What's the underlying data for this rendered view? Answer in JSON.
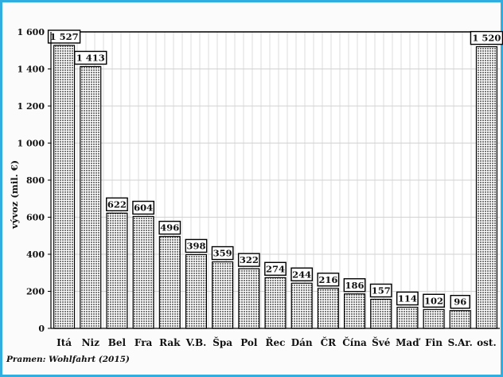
{
  "chart_data": {
    "type": "bar",
    "title": "",
    "xlabel": "",
    "ylabel": "vývoz (mil. €)",
    "ylim": [
      0,
      1600
    ],
    "yticks": [
      0,
      200,
      400,
      600,
      800,
      1000,
      1200,
      1400,
      1600
    ],
    "ytick_labels": [
      "0",
      "200",
      "400",
      "600",
      "800",
      "1 000",
      "1 200",
      "1 400",
      "1 600"
    ],
    "categories": [
      "Itá",
      "Niz",
      "Bel",
      "Fra",
      "Rak",
      "V.B.",
      "Špa",
      "Pol",
      "Řec",
      "Dán",
      "ČR",
      "Čína",
      "Švé",
      "Maď",
      "Fin",
      "S.Ar.",
      "ost."
    ],
    "values": [
      1527,
      1413,
      622,
      604,
      496,
      398,
      359,
      322,
      274,
      244,
      216,
      186,
      157,
      114,
      102,
      96,
      1520
    ],
    "value_labels": [
      "1 527",
      "1 413",
      "622",
      "604",
      "496",
      "398",
      "359",
      "322",
      "274",
      "244",
      "216",
      "186",
      "157",
      "114",
      "102",
      "96",
      "1 520"
    ],
    "grid": true,
    "bar_fill": "#8a8a8a",
    "source": "Pramen: Wohlfahrt (2015)"
  }
}
